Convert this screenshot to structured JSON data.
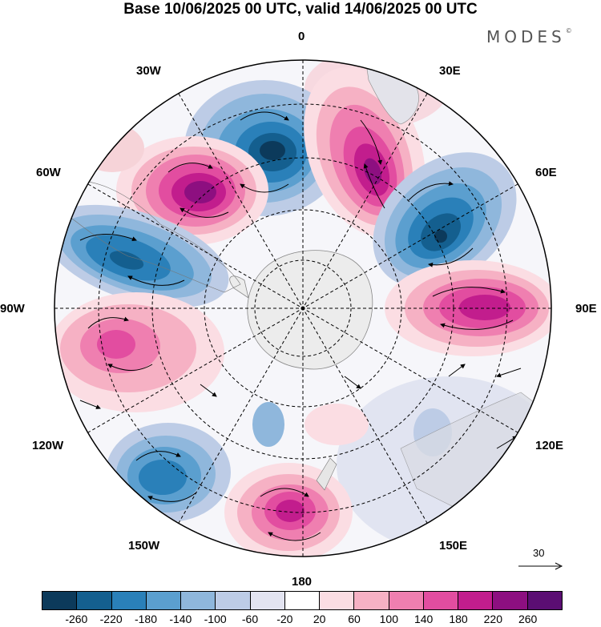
{
  "title": "Base 10/06/2025 00 UTC, valid 14/06/2025 00 UTC",
  "brand": {
    "name": "MODES",
    "mark": "©"
  },
  "longitude_labels": {
    "lon_0": "0",
    "lon_30e": "30E",
    "lon_60e": "60E",
    "lon_90e": "90E",
    "lon_120e": "120E",
    "lon_150e": "150E",
    "lon_180": "180",
    "lon_150w": "150W",
    "lon_120w": "120W",
    "lon_90w": "90W",
    "lon_60w": "60W",
    "lon_30w": "30W"
  },
  "wind_reference_vector": {
    "value": "30"
  },
  "colorbar": {
    "labels": [
      "-260",
      "-220",
      "-180",
      "-140",
      "-100",
      "-60",
      "-20",
      "20",
      "60",
      "100",
      "140",
      "180",
      "220",
      "260"
    ],
    "colors": [
      "#0c3a5b",
      "#145f8f",
      "#2a80b9",
      "#5b9fcf",
      "#8fb7dc",
      "#bdcce6",
      "#e3e4f1",
      "#ffffff",
      "#fbdde3",
      "#f6b1c4",
      "#ef7fb0",
      "#e24da0",
      "#c21d8d",
      "#8d0f80",
      "#5b0e73"
    ]
  },
  "map": {
    "projection": "south polar stereographic",
    "anomaly_centers": [
      {
        "sign": "negative",
        "level": -260,
        "lon": "5W"
      },
      {
        "sign": "positive",
        "level": 240,
        "lon": "35W"
      },
      {
        "sign": "positive",
        "level": 220,
        "lon": "20E"
      },
      {
        "sign": "negative",
        "level": -240,
        "lon": "60E"
      },
      {
        "sign": "positive",
        "level": 200,
        "lon": "90E"
      },
      {
        "sign": "negative",
        "level": -200,
        "lon": "70W"
      },
      {
        "sign": "positive",
        "level": 160,
        "lon": "100W"
      },
      {
        "sign": "negative",
        "level": -200,
        "lon": "145W"
      },
      {
        "sign": "positive",
        "level": 200,
        "lon": "180"
      },
      {
        "sign": "negative",
        "level": -60,
        "lon": "140E"
      }
    ]
  }
}
